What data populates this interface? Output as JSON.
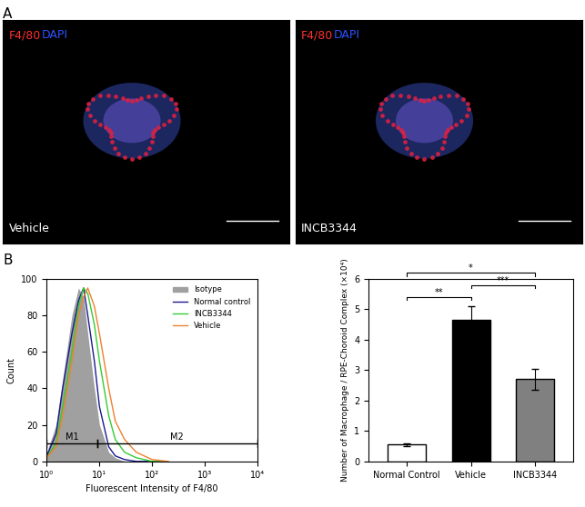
{
  "panel_A": {
    "label": "A",
    "images": [
      {
        "stain_labels": [
          {
            "text": "F4/80",
            "color": "#ff3030"
          },
          {
            "text": "DAPI",
            "color": "#3050ff"
          }
        ],
        "condition": "Vehicle"
      },
      {
        "stain_labels": [
          {
            "text": "F4/80",
            "color": "#ff3030"
          },
          {
            "text": "DAPI",
            "color": "#3050ff"
          }
        ],
        "condition": "INCB3344"
      }
    ]
  },
  "panel_B": {
    "label": "B"
  },
  "chart_data": [
    {
      "type": "line",
      "x": [
        1,
        1.5,
        2,
        3,
        4,
        5,
        6,
        8,
        10,
        15,
        20,
        30,
        50,
        100,
        200
      ],
      "x_label": "Fluorescent Intensity of F4/80",
      "y_label": "Count",
      "log": "x",
      "xlim": [
        1,
        10000
      ],
      "xticks": [
        {
          "value": 1,
          "label": "10⁰"
        },
        {
          "value": 10,
          "label": "10¹"
        },
        {
          "value": 100,
          "label": "10²"
        },
        {
          "value": 1000,
          "label": "10³"
        },
        {
          "value": 10000,
          "label": "10⁴"
        }
      ],
      "ylim": [
        0,
        100
      ],
      "yticks": [
        0,
        20,
        40,
        60,
        80,
        100
      ],
      "legend": "upper right",
      "series": [
        {
          "name": "Isotype",
          "type": "area",
          "color": "#a0a0a0",
          "values": [
            5,
            20,
            45,
            80,
            95,
            90,
            70,
            40,
            20,
            5,
            2,
            0,
            0,
            0,
            0
          ]
        },
        {
          "name": "Normal control",
          "type": "line",
          "color": "#1a1a8c",
          "values": [
            3,
            15,
            40,
            70,
            88,
            95,
            80,
            55,
            30,
            8,
            3,
            1,
            0,
            0,
            0
          ]
        },
        {
          "name": "INCB3344",
          "type": "line",
          "color": "#33cc33",
          "values": [
            2,
            10,
            30,
            60,
            85,
            95,
            92,
            75,
            55,
            25,
            12,
            5,
            2,
            0,
            0
          ]
        },
        {
          "name": "Vehicle",
          "type": "line",
          "color": "#f08030",
          "values": [
            2,
            8,
            25,
            55,
            80,
            90,
            95,
            85,
            70,
            40,
            22,
            12,
            5,
            1,
            0
          ]
        }
      ],
      "gates": [
        {
          "name": "M1",
          "range": [
            1,
            9
          ],
          "y": 10
        },
        {
          "name": "M2",
          "range": [
            9,
            10000
          ],
          "y": 10
        }
      ]
    },
    {
      "type": "bar",
      "categories": [
        "Normal Control",
        "Vehicle",
        "INCB3344"
      ],
      "values": [
        0.55,
        4.65,
        2.7
      ],
      "error": [
        0.05,
        0.45,
        0.35
      ],
      "colors": [
        "#ffffff",
        "#000000",
        "#808080"
      ],
      "y_label": "Number of Macrophage / RPE-Choroid Complex (×10⁴)",
      "ylim": [
        0,
        6
      ],
      "yticks": [
        0,
        1,
        2,
        3,
        4,
        5,
        6
      ],
      "significance": [
        {
          "pair": [
            0,
            1
          ],
          "label": "**"
        },
        {
          "pair": [
            1,
            2
          ],
          "label": "***"
        },
        {
          "pair": [
            0,
            2
          ],
          "label": "*"
        }
      ]
    }
  ]
}
